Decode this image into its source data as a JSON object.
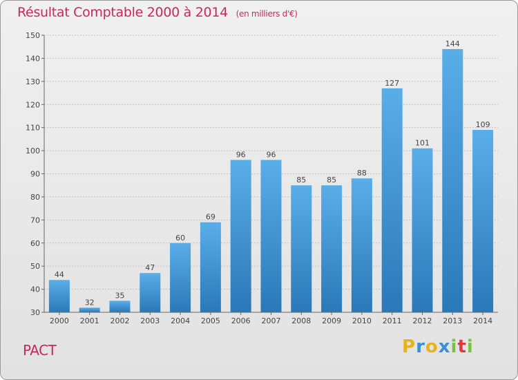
{
  "header": {
    "title": "Résultat Comptable 2000 à 2014",
    "subtitle": "(en milliers d'€)"
  },
  "footer": {
    "commune": "PACT",
    "logo_letters": [
      {
        "char": "P",
        "color": "#e8b219"
      },
      {
        "char": "r",
        "color": "#3a8fd6"
      },
      {
        "char": "o",
        "color": "#e8b219"
      },
      {
        "char": "x",
        "color": "#3a8fd6"
      },
      {
        "char": "i",
        "color": "#7bc043"
      },
      {
        "char": "t",
        "color": "#e2373e"
      },
      {
        "char": "i",
        "color": "#7bc043"
      }
    ]
  },
  "colors": {
    "accent": "#c8285a",
    "bar_top": "#5aaee8",
    "bar_bottom": "#2a78b8"
  },
  "chart_data": {
    "type": "bar",
    "title": "Résultat Comptable 2000 à 2014",
    "subtitle": "(en milliers d'€)",
    "categories": [
      "2000",
      "2001",
      "2002",
      "2003",
      "2004",
      "2005",
      "2006",
      "2007",
      "2008",
      "2009",
      "2010",
      "2011",
      "2012",
      "2013",
      "2014"
    ],
    "values": [
      44,
      32,
      35,
      47,
      60,
      69,
      96,
      96,
      85,
      85,
      88,
      127,
      101,
      144,
      109
    ],
    "ylim": [
      30,
      150
    ],
    "yticks": [
      30,
      40,
      50,
      60,
      70,
      80,
      90,
      100,
      110,
      120,
      130,
      140,
      150
    ],
    "grid": true,
    "data_labels": true,
    "xlabel": "",
    "ylabel": ""
  }
}
